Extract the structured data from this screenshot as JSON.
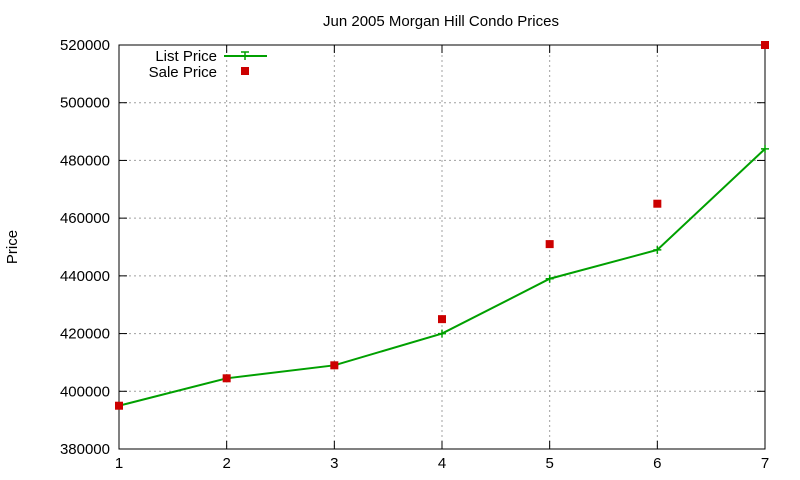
{
  "chart_data": {
    "type": "line",
    "title": "Jun 2005 Morgan Hill Condo Prices",
    "xlabel": "",
    "ylabel": "Price",
    "xlim": [
      1,
      7
    ],
    "ylim": [
      380000,
      520000
    ],
    "x_ticks": [
      "1",
      "2",
      "3",
      "4",
      "5",
      "6",
      "7"
    ],
    "y_ticks": [
      "380000",
      "400000",
      "420000",
      "440000",
      "460000",
      "480000",
      "500000",
      "520000"
    ],
    "grid": true,
    "legend_position": "top-left",
    "series": [
      {
        "name": "List Price",
        "style": "line-with-plus-markers",
        "color": "#00a000",
        "x": [
          1,
          2,
          3,
          4,
          5,
          6,
          7
        ],
        "y": [
          395000,
          404500,
          409000,
          420000,
          439000,
          449000,
          484000
        ]
      },
      {
        "name": "Sale Price",
        "style": "square-markers",
        "color": "#cc0000",
        "x": [
          1,
          2,
          3,
          4,
          5,
          6,
          7
        ],
        "y": [
          395000,
          404500,
          409000,
          425000,
          451000,
          465000,
          520000
        ]
      }
    ]
  }
}
